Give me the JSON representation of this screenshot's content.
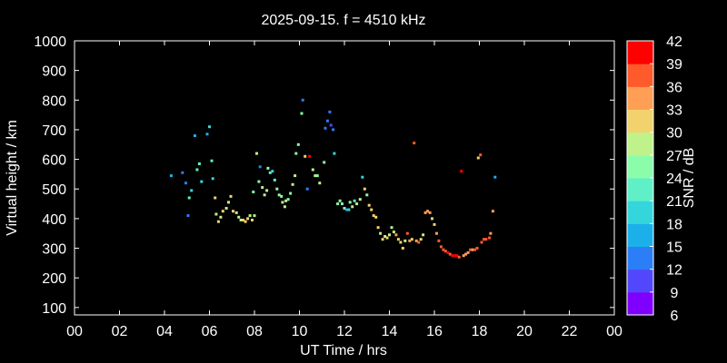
{
  "chart_data": {
    "type": "scatter",
    "title": "2025-09-15. f = 4510 kHz",
    "xlabel": "UT Time / hrs",
    "ylabel": "Virtual height / km",
    "xlim": [
      0,
      24
    ],
    "ylim": [
      75,
      1000
    ],
    "xticks": [
      "00",
      "02",
      "04",
      "06",
      "08",
      "10",
      "12",
      "14",
      "16",
      "18",
      "20",
      "22",
      "00"
    ],
    "yticks": [
      100,
      200,
      300,
      400,
      500,
      600,
      700,
      800,
      900,
      1000
    ],
    "grid": false,
    "colorbar": {
      "label": "SNR / dB",
      "range": [
        6,
        42
      ],
      "ticks": [
        6,
        9,
        12,
        15,
        18,
        21,
        24,
        27,
        30,
        33,
        36,
        39,
        42
      ],
      "colors": [
        "#7f00ff",
        "#5247fc",
        "#2b7ef6",
        "#1cb0ea",
        "#34d6db",
        "#5ff0c7",
        "#8bfdaa",
        "#c0f28b",
        "#f2d26c",
        "#ff9e55",
        "#ff5a2b",
        "#ff0000"
      ]
    },
    "points": [
      {
        "x": 4.3,
        "y": 545,
        "snr": 15
      },
      {
        "x": 4.8,
        "y": 555,
        "snr": 12
      },
      {
        "x": 4.95,
        "y": 520,
        "snr": 13
      },
      {
        "x": 5.05,
        "y": 410,
        "snr": 14
      },
      {
        "x": 5.1,
        "y": 470,
        "snr": 21
      },
      {
        "x": 5.2,
        "y": 495,
        "snr": 18
      },
      {
        "x": 5.35,
        "y": 680,
        "snr": 15
      },
      {
        "x": 5.45,
        "y": 565,
        "snr": 21
      },
      {
        "x": 5.55,
        "y": 585,
        "snr": 21
      },
      {
        "x": 5.65,
        "y": 525,
        "snr": 18
      },
      {
        "x": 5.9,
        "y": 685,
        "snr": 15
      },
      {
        "x": 6.0,
        "y": 710,
        "snr": 18
      },
      {
        "x": 6.1,
        "y": 595,
        "snr": 21
      },
      {
        "x": 6.15,
        "y": 535,
        "snr": 18
      },
      {
        "x": 6.25,
        "y": 470,
        "snr": 30
      },
      {
        "x": 6.3,
        "y": 415,
        "snr": 27
      },
      {
        "x": 6.4,
        "y": 390,
        "snr": 30
      },
      {
        "x": 6.5,
        "y": 405,
        "snr": 27
      },
      {
        "x": 6.6,
        "y": 425,
        "snr": 30
      },
      {
        "x": 6.75,
        "y": 435,
        "snr": 27
      },
      {
        "x": 6.85,
        "y": 455,
        "snr": 27
      },
      {
        "x": 6.95,
        "y": 475,
        "snr": 30
      },
      {
        "x": 7.05,
        "y": 425,
        "snr": 30
      },
      {
        "x": 7.2,
        "y": 420,
        "snr": 27
      },
      {
        "x": 7.3,
        "y": 405,
        "snr": 27
      },
      {
        "x": 7.4,
        "y": 395,
        "snr": 27
      },
      {
        "x": 7.5,
        "y": 395,
        "snr": 30
      },
      {
        "x": 7.6,
        "y": 390,
        "snr": 30
      },
      {
        "x": 7.7,
        "y": 400,
        "snr": 30
      },
      {
        "x": 7.8,
        "y": 410,
        "snr": 27
      },
      {
        "x": 7.9,
        "y": 395,
        "snr": 30
      },
      {
        "x": 8.0,
        "y": 410,
        "snr": 27
      },
      {
        "x": 7.95,
        "y": 490,
        "snr": 24
      },
      {
        "x": 8.1,
        "y": 620,
        "snr": 27
      },
      {
        "x": 8.2,
        "y": 525,
        "snr": 24
      },
      {
        "x": 8.25,
        "y": 575,
        "snr": 12
      },
      {
        "x": 8.35,
        "y": 505,
        "snr": 27
      },
      {
        "x": 8.45,
        "y": 480,
        "snr": 27
      },
      {
        "x": 8.55,
        "y": 495,
        "snr": 27
      },
      {
        "x": 8.6,
        "y": 570,
        "snr": 24
      },
      {
        "x": 8.7,
        "y": 555,
        "snr": 21
      },
      {
        "x": 8.8,
        "y": 560,
        "snr": 18
      },
      {
        "x": 8.9,
        "y": 530,
        "snr": 21
      },
      {
        "x": 9.0,
        "y": 500,
        "snr": 24
      },
      {
        "x": 9.1,
        "y": 480,
        "snr": 24
      },
      {
        "x": 9.2,
        "y": 475,
        "snr": 24
      },
      {
        "x": 9.25,
        "y": 455,
        "snr": 27
      },
      {
        "x": 9.35,
        "y": 440,
        "snr": 27
      },
      {
        "x": 9.4,
        "y": 460,
        "snr": 27
      },
      {
        "x": 9.5,
        "y": 465,
        "snr": 24
      },
      {
        "x": 9.6,
        "y": 485,
        "snr": 24
      },
      {
        "x": 9.7,
        "y": 515,
        "snr": 27
      },
      {
        "x": 9.8,
        "y": 545,
        "snr": 27
      },
      {
        "x": 9.85,
        "y": 620,
        "snr": 24
      },
      {
        "x": 9.95,
        "y": 650,
        "snr": 24
      },
      {
        "x": 10.1,
        "y": 755,
        "snr": 24
      },
      {
        "x": 10.15,
        "y": 800,
        "snr": 12
      },
      {
        "x": 10.25,
        "y": 610,
        "snr": 30
      },
      {
        "x": 10.35,
        "y": 500,
        "snr": 12
      },
      {
        "x": 10.45,
        "y": 610,
        "snr": 42
      },
      {
        "x": 10.6,
        "y": 565,
        "snr": 27
      },
      {
        "x": 10.7,
        "y": 545,
        "snr": 27
      },
      {
        "x": 10.8,
        "y": 545,
        "snr": 24
      },
      {
        "x": 10.9,
        "y": 520,
        "snr": 27
      },
      {
        "x": 11.1,
        "y": 590,
        "snr": 24
      },
      {
        "x": 11.15,
        "y": 705,
        "snr": 12
      },
      {
        "x": 11.25,
        "y": 730,
        "snr": 12
      },
      {
        "x": 11.35,
        "y": 760,
        "snr": 12
      },
      {
        "x": 11.4,
        "y": 715,
        "snr": 9
      },
      {
        "x": 11.5,
        "y": 700,
        "snr": 12
      },
      {
        "x": 11.55,
        "y": 620,
        "snr": 18
      },
      {
        "x": 11.7,
        "y": 450,
        "snr": 24
      },
      {
        "x": 11.8,
        "y": 460,
        "snr": 24
      },
      {
        "x": 11.9,
        "y": 450,
        "snr": 24
      },
      {
        "x": 12.0,
        "y": 435,
        "snr": 24
      },
      {
        "x": 12.1,
        "y": 430,
        "snr": 15
      },
      {
        "x": 12.2,
        "y": 430,
        "snr": 18
      },
      {
        "x": 12.25,
        "y": 455,
        "snr": 24
      },
      {
        "x": 12.35,
        "y": 440,
        "snr": 27
      },
      {
        "x": 12.45,
        "y": 460,
        "snr": 21
      },
      {
        "x": 12.55,
        "y": 450,
        "snr": 27
      },
      {
        "x": 12.7,
        "y": 465,
        "snr": 27
      },
      {
        "x": 12.8,
        "y": 540,
        "snr": 18
      },
      {
        "x": 12.9,
        "y": 500,
        "snr": 30
      },
      {
        "x": 13.0,
        "y": 480,
        "snr": 24
      },
      {
        "x": 13.1,
        "y": 445,
        "snr": 30
      },
      {
        "x": 13.2,
        "y": 430,
        "snr": 30
      },
      {
        "x": 13.3,
        "y": 410,
        "snr": 30
      },
      {
        "x": 13.4,
        "y": 405,
        "snr": 30
      },
      {
        "x": 13.5,
        "y": 370,
        "snr": 30
      },
      {
        "x": 13.6,
        "y": 350,
        "snr": 27
      },
      {
        "x": 13.7,
        "y": 330,
        "snr": 30
      },
      {
        "x": 13.8,
        "y": 340,
        "snr": 27
      },
      {
        "x": 13.9,
        "y": 335,
        "snr": 30
      },
      {
        "x": 14.0,
        "y": 345,
        "snr": 27
      },
      {
        "x": 14.1,
        "y": 370,
        "snr": 27
      },
      {
        "x": 14.2,
        "y": 355,
        "snr": 27
      },
      {
        "x": 14.3,
        "y": 345,
        "snr": 33
      },
      {
        "x": 14.4,
        "y": 330,
        "snr": 30
      },
      {
        "x": 14.5,
        "y": 320,
        "snr": 30
      },
      {
        "x": 14.6,
        "y": 300,
        "snr": 30
      },
      {
        "x": 14.7,
        "y": 325,
        "snr": 27
      },
      {
        "x": 14.8,
        "y": 350,
        "snr": 36
      },
      {
        "x": 14.9,
        "y": 325,
        "snr": 33
      },
      {
        "x": 15.0,
        "y": 330,
        "snr": 30
      },
      {
        "x": 15.1,
        "y": 655,
        "snr": 36
      },
      {
        "x": 15.2,
        "y": 325,
        "snr": 33
      },
      {
        "x": 15.3,
        "y": 320,
        "snr": 36
      },
      {
        "x": 15.4,
        "y": 330,
        "snr": 30
      },
      {
        "x": 15.5,
        "y": 345,
        "snr": 27
      },
      {
        "x": 15.6,
        "y": 420,
        "snr": 33
      },
      {
        "x": 15.7,
        "y": 425,
        "snr": 33
      },
      {
        "x": 15.8,
        "y": 420,
        "snr": 33
      },
      {
        "x": 15.9,
        "y": 400,
        "snr": 30
      },
      {
        "x": 16.0,
        "y": 380,
        "snr": 30
      },
      {
        "x": 16.1,
        "y": 350,
        "snr": 33
      },
      {
        "x": 16.2,
        "y": 325,
        "snr": 36
      },
      {
        "x": 16.3,
        "y": 305,
        "snr": 36
      },
      {
        "x": 16.4,
        "y": 295,
        "snr": 36
      },
      {
        "x": 16.5,
        "y": 290,
        "snr": 36
      },
      {
        "x": 16.6,
        "y": 285,
        "snr": 39
      },
      {
        "x": 16.7,
        "y": 280,
        "snr": 36
      },
      {
        "x": 16.8,
        "y": 275,
        "snr": 39
      },
      {
        "x": 16.9,
        "y": 275,
        "snr": 39
      },
      {
        "x": 17.0,
        "y": 275,
        "snr": 39
      },
      {
        "x": 17.1,
        "y": 270,
        "snr": 36
      },
      {
        "x": 17.2,
        "y": 560,
        "snr": 39
      },
      {
        "x": 17.3,
        "y": 275,
        "snr": 33
      },
      {
        "x": 17.4,
        "y": 280,
        "snr": 33
      },
      {
        "x": 17.5,
        "y": 285,
        "snr": 33
      },
      {
        "x": 17.6,
        "y": 295,
        "snr": 36
      },
      {
        "x": 17.7,
        "y": 295,
        "snr": 33
      },
      {
        "x": 17.8,
        "y": 295,
        "snr": 36
      },
      {
        "x": 17.9,
        "y": 300,
        "snr": 36
      },
      {
        "x": 17.95,
        "y": 605,
        "snr": 30
      },
      {
        "x": 18.05,
        "y": 615,
        "snr": 36
      },
      {
        "x": 18.1,
        "y": 320,
        "snr": 36
      },
      {
        "x": 18.2,
        "y": 330,
        "snr": 36
      },
      {
        "x": 18.3,
        "y": 330,
        "snr": 36
      },
      {
        "x": 18.45,
        "y": 335,
        "snr": 36
      },
      {
        "x": 18.5,
        "y": 350,
        "snr": 33
      },
      {
        "x": 18.6,
        "y": 425,
        "snr": 33
      },
      {
        "x": 18.7,
        "y": 540,
        "snr": 15
      }
    ]
  }
}
